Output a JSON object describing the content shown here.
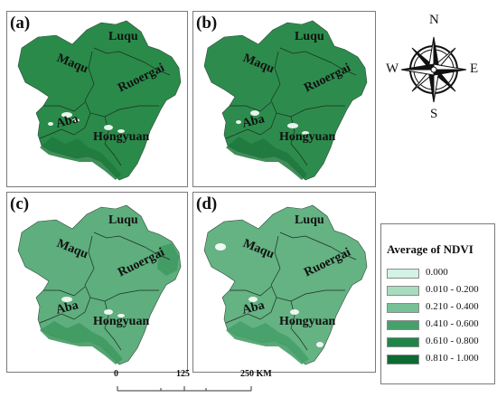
{
  "panels": [
    {
      "label": "(a)",
      "fill": "#2a8a4a",
      "shade": "#1f7a3d"
    },
    {
      "label": "(b)",
      "fill": "#2d8c4d",
      "shade": "#20783e"
    },
    {
      "label": "(c)",
      "fill": "#5fae7e",
      "shade": "#3f9a62"
    },
    {
      "label": "(d)",
      "fill": "#65b283",
      "shade": "#46a068"
    }
  ],
  "regions": {
    "luqu": "Luqu",
    "maqu": "Maqu",
    "ruoergai": "Ruoergai",
    "aba": "Aba",
    "hongyuan": "Hongyuan"
  },
  "compass": {
    "n": "N",
    "s": "S",
    "e": "E",
    "w": "W"
  },
  "legend": {
    "title": "Average of NDVI",
    "items": [
      {
        "label": "0.000",
        "color": "#d2f3e6"
      },
      {
        "label": "0.010 - 0.200",
        "color": "#a8dcbe"
      },
      {
        "label": "0.210 - 0.400",
        "color": "#77c196"
      },
      {
        "label": "0.410 - 0.600",
        "color": "#46a06a"
      },
      {
        "label": "0.610 - 0.800",
        "color": "#1f8447"
      },
      {
        "label": "0.810 - 1.000",
        "color": "#0d6a33"
      }
    ]
  },
  "scale": {
    "t0": "0",
    "t1": "125",
    "t2": "250 KM"
  }
}
